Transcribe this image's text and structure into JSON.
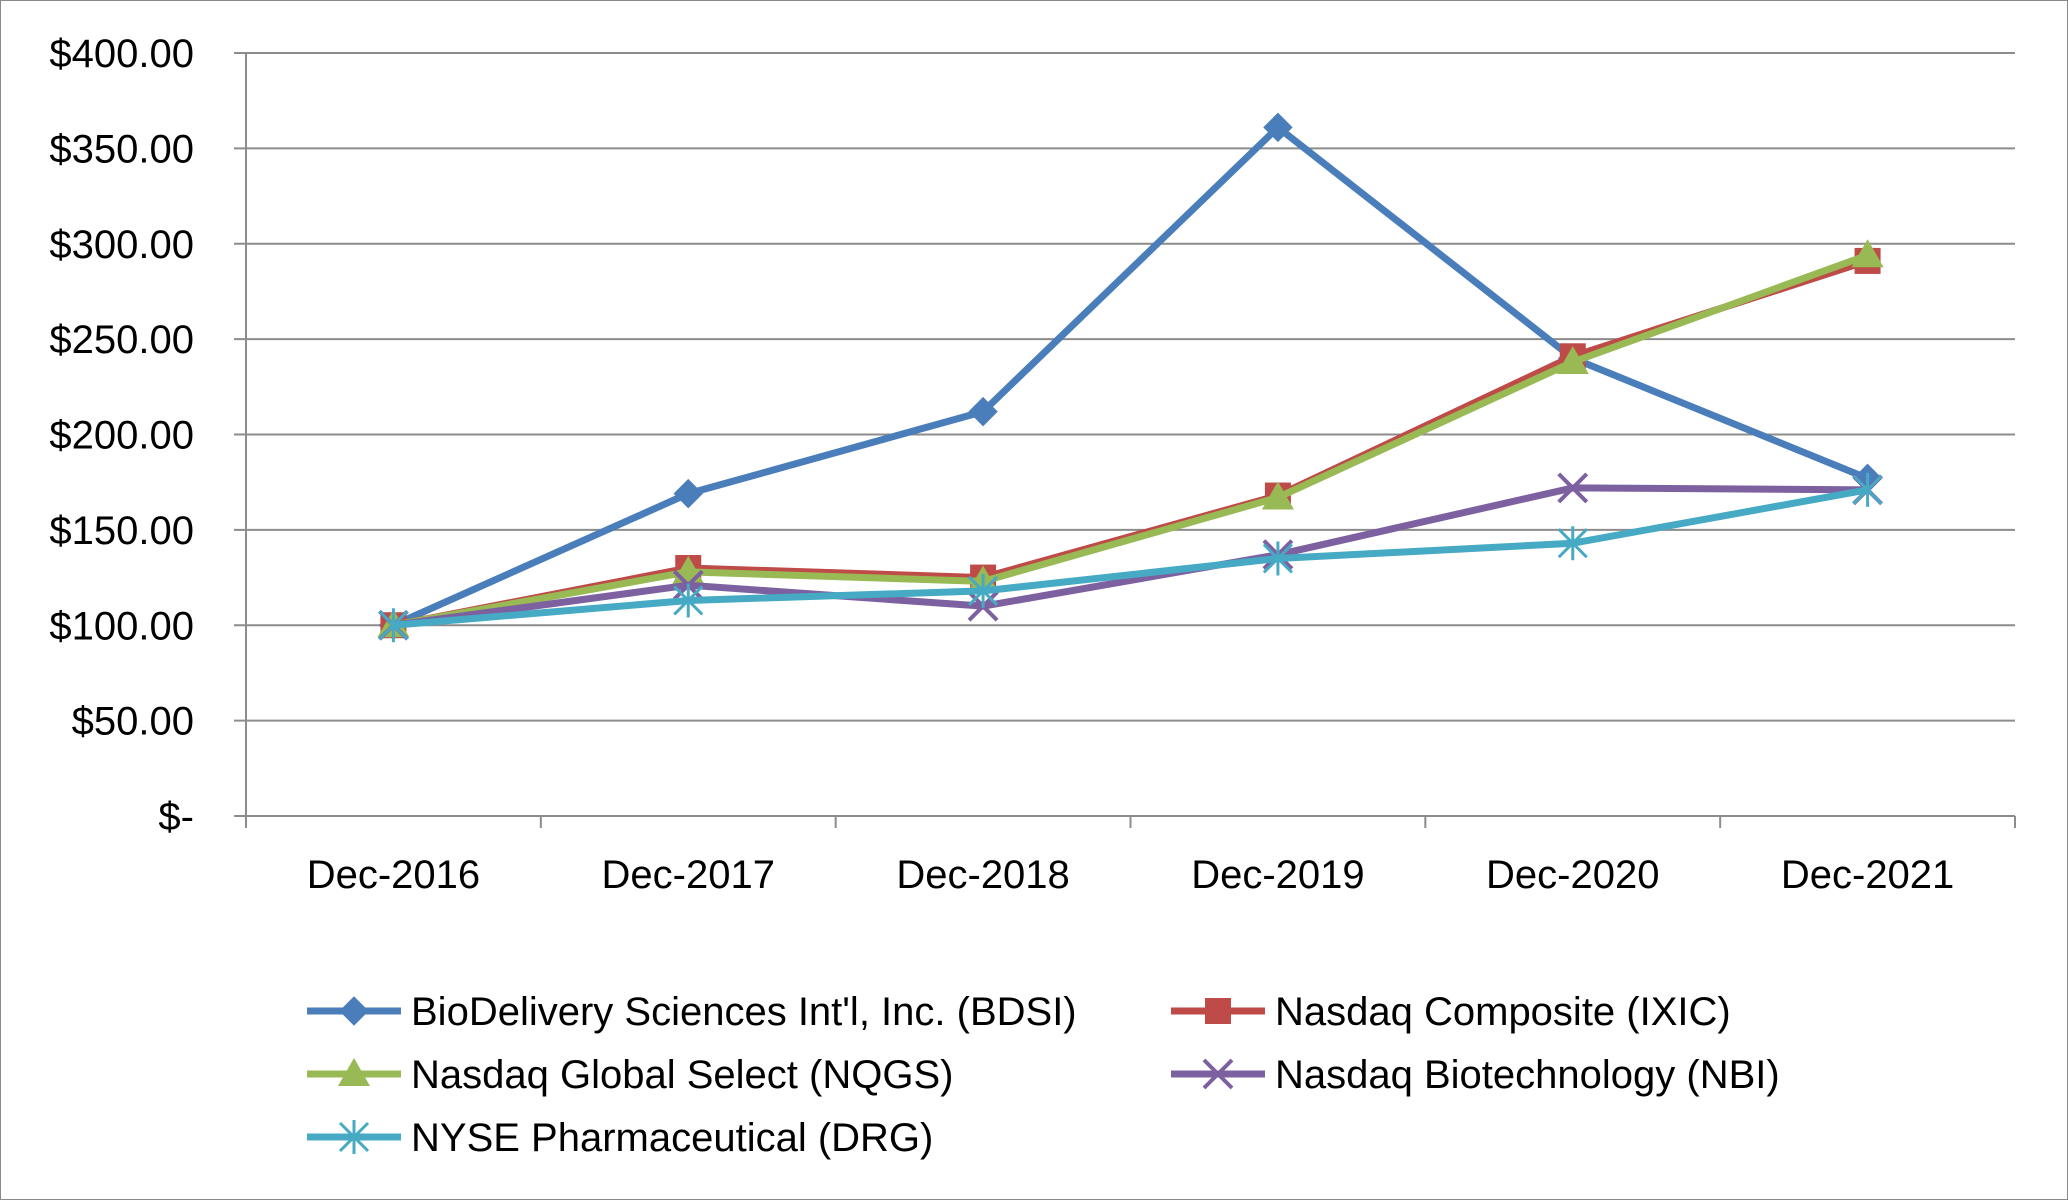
{
  "chart_data": {
    "type": "line",
    "title": "",
    "xlabel": "",
    "ylabel": "",
    "categories": [
      "Dec-2016",
      "Dec-2017",
      "Dec-2018",
      "Dec-2019",
      "Dec-2020",
      "Dec-2021"
    ],
    "ylim": [
      0,
      400
    ],
    "yticks": [
      {
        "value": 0,
        "label": "$-"
      },
      {
        "value": 50,
        "label": "$50.00"
      },
      {
        "value": 100,
        "label": "$100.00"
      },
      {
        "value": 150,
        "label": "$150.00"
      },
      {
        "value": 200,
        "label": "$200.00"
      },
      {
        "value": 250,
        "label": "$250.00"
      },
      {
        "value": 300,
        "label": "$300.00"
      },
      {
        "value": 350,
        "label": "$350.00"
      },
      {
        "value": 400,
        "label": "$400.00"
      }
    ],
    "grid": true,
    "legend_position": "bottom",
    "series": [
      {
        "name": "BioDelivery Sciences Int'l, Inc. (BDSI)",
        "color": "#4a7ebb",
        "marker": "diamond",
        "values": [
          100,
          169,
          212,
          361,
          240,
          177
        ]
      },
      {
        "name": "Nasdaq Composite (IXIC)",
        "color": "#be4b48",
        "marker": "square",
        "values": [
          100,
          130,
          125,
          168,
          241,
          291
        ]
      },
      {
        "name": "Nasdaq Global Select (NQGS)",
        "color": "#98b954",
        "marker": "triangle",
        "values": [
          100,
          128,
          123,
          167,
          238,
          294
        ]
      },
      {
        "name": "Nasdaq Biotechnology (NBI)",
        "color": "#7d60a0",
        "marker": "x",
        "values": [
          100,
          121,
          110,
          137,
          172,
          171
        ]
      },
      {
        "name": "NYSE Pharmaceutical (DRG)",
        "color": "#46aac5",
        "marker": "star",
        "values": [
          100,
          113,
          118,
          135,
          143,
          171
        ]
      }
    ]
  }
}
